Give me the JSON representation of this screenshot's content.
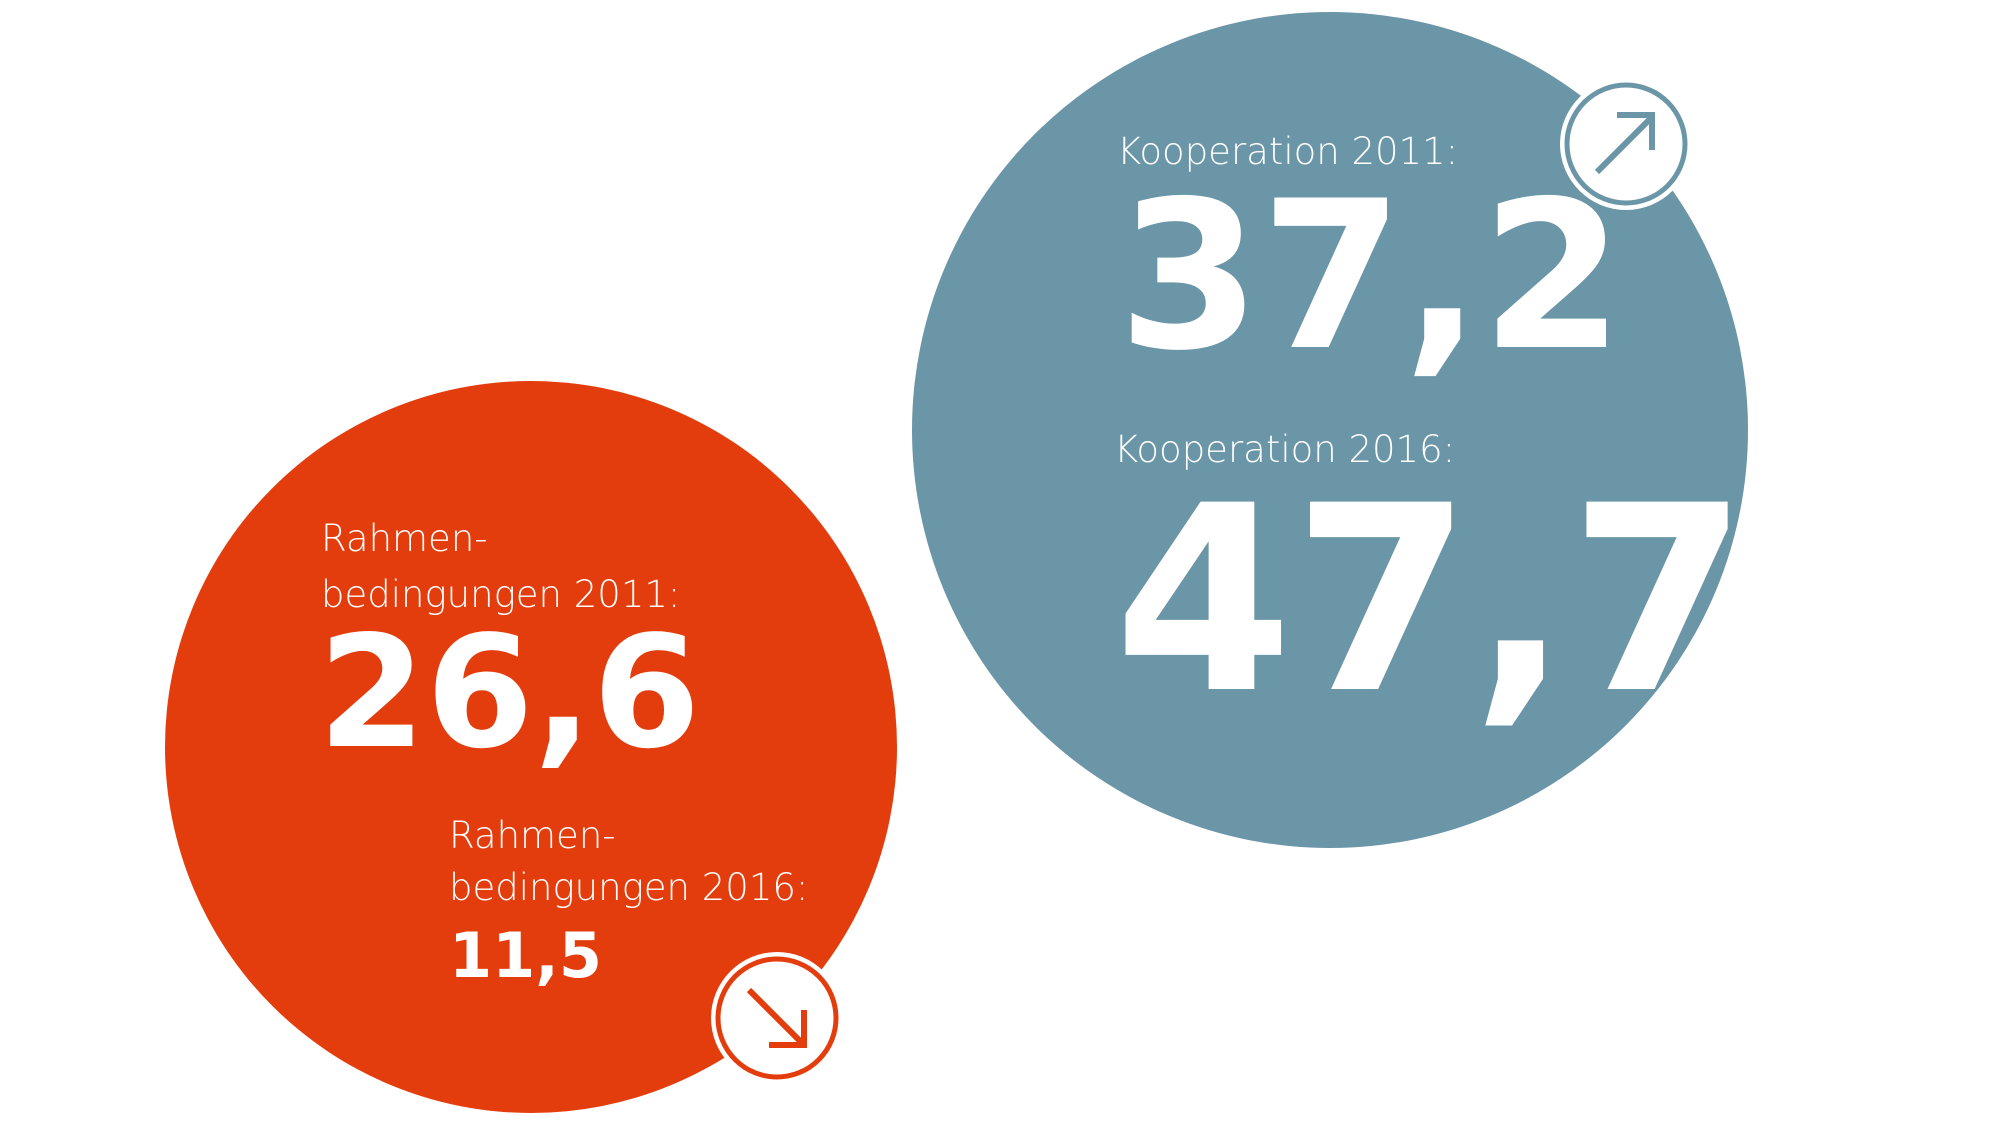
{
  "cooperation": {
    "items": [
      {
        "label": "Kooperation 2011:",
        "value": "37,2"
      },
      {
        "label": "Kooperation 2016:",
        "value": "47,7"
      }
    ]
  },
  "conditions": {
    "items": [
      {
        "label_lines": [
          "Rahmen-",
          "bedingungen 2011:"
        ],
        "value": "26,6"
      },
      {
        "label_lines": [
          "Rahmen-",
          "bedingungen 2016:"
        ],
        "value": "11,5"
      }
    ]
  }
}
